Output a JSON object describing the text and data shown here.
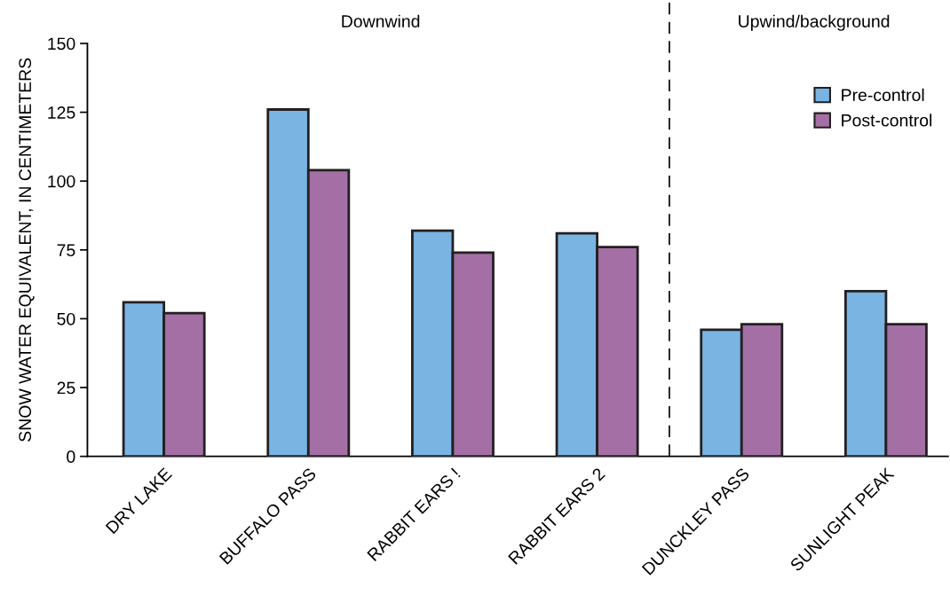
{
  "chart_data": {
    "type": "bar",
    "ylabel": "SNOW WATER EQUIVALENT, IN CENTIMETERS",
    "categories": [
      "DRY LAKE",
      "BUFFALO PASS",
      "RABBIT EARS !",
      "RABBIT EARS 2",
      "DUNCKLEY PASS",
      "SUNLIGHT PEAK"
    ],
    "series": [
      {
        "name": "Pre-control",
        "color": "#79b4e3",
        "values": [
          56,
          126,
          82,
          81,
          46,
          60
        ]
      },
      {
        "name": "Post-control",
        "color": "#a46fa5",
        "values": [
          52,
          104,
          74,
          76,
          48,
          48
        ]
      }
    ],
    "ylim": [
      0,
      150
    ],
    "yticks": [
      0,
      25,
      50,
      75,
      100,
      125,
      150
    ],
    "annotations": [
      "Downwind",
      "Upwind/background"
    ],
    "legend": "top right",
    "grid": false
  }
}
